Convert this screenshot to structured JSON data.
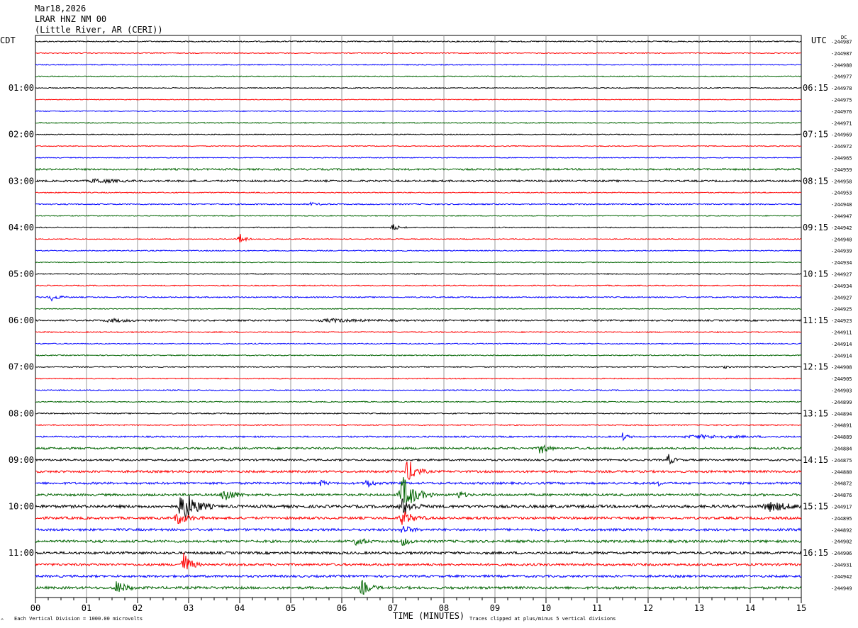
{
  "header": {
    "date": "Mar18,2026",
    "station": "LRAR HNZ NM 00",
    "location": "(Little River, AR (CERI))"
  },
  "labels": {
    "left_tz": "CDT",
    "right_tz": "UTC",
    "dc": "DC",
    "xlabel": "TIME (MINUTES)",
    "scale_note": "Each Vertical Division = 1000.00 microvolts",
    "clip_note": "Traces clipped at plus/minus 5 vertical divisions",
    "corner_mark": "^"
  },
  "chart_data": {
    "type": "line",
    "x_ticks": [
      "00",
      "01",
      "02",
      "03",
      "04",
      "05",
      "06",
      "07",
      "08",
      "09",
      "10",
      "11",
      "12",
      "13",
      "14",
      "15"
    ],
    "xlim": [
      0,
      15
    ],
    "minor_ticks_per_minute": 4,
    "left_hour_labels": [
      "01:00",
      "02:00",
      "03:00",
      "04:00",
      "05:00",
      "06:00",
      "07:00",
      "08:00",
      "09:00",
      "10:00",
      "11:00"
    ],
    "right_hour_labels": [
      "06:15",
      "07:15",
      "08:15",
      "09:15",
      "10:15",
      "11:15",
      "12:15",
      "13:15",
      "14:15",
      "15:15",
      "16:15"
    ],
    "labeled_every_n_traces": 4,
    "trace_colors": [
      "#000000",
      "#ff0000",
      "#0000ff",
      "#006400"
    ],
    "dc_offsets": [
      "-244987",
      "-244987",
      "-244980",
      "-244977",
      "-244978",
      "-244975",
      "-244976",
      "-244971",
      "-244969",
      "-244972",
      "-244965",
      "-244959",
      "-244958",
      "-244953",
      "-244948",
      "-244947",
      "-244942",
      "-244940",
      "-244939",
      "-244934",
      "-244927",
      "-244934",
      "-244927",
      "-244925",
      "-244923",
      "-244911",
      "-244914",
      "-244914",
      "-244908",
      "-244905",
      "-244903",
      "-244899",
      "-244894",
      "-244891",
      "-244889",
      "-244884",
      "-244875",
      "-244880",
      "-244872",
      "-244876",
      "-244917",
      "-244895",
      "-244892",
      "-244902",
      "-244906",
      "-244931",
      "-244942",
      "-244949"
    ],
    "trace_noise": [
      0.8,
      0.6,
      0.7,
      0.6,
      0.6,
      0.5,
      0.6,
      0.7,
      0.6,
      0.6,
      0.6,
      1.2,
      1.3,
      0.7,
      0.8,
      0.6,
      0.7,
      0.6,
      0.7,
      0.6,
      0.7,
      0.7,
      0.8,
      0.6,
      1.1,
      0.8,
      0.7,
      0.7,
      0.7,
      0.7,
      0.7,
      0.7,
      0.8,
      0.8,
      1.0,
      1.4,
      1.3,
      1.5,
      1.5,
      1.6,
      2.0,
      1.7,
      1.6,
      1.7,
      1.7,
      1.6,
      1.6,
      1.7
    ],
    "events": [
      {
        "trace": 12,
        "minute": 1.2,
        "amp": 3,
        "width": 0.8
      },
      {
        "trace": 14,
        "minute": 5.4,
        "amp": 2,
        "width": 0.4
      },
      {
        "trace": 16,
        "minute": 7.0,
        "amp": 5,
        "width": 0.3
      },
      {
        "trace": 17,
        "minute": 4.0,
        "amp": 8,
        "width": 0.25
      },
      {
        "trace": 22,
        "minute": 0.3,
        "amp": 5,
        "width": 0.4
      },
      {
        "trace": 24,
        "minute": 1.5,
        "amp": 2,
        "width": 1.0
      },
      {
        "trace": 24,
        "minute": 5.8,
        "amp": 2,
        "width": 1.5
      },
      {
        "trace": 28,
        "minute": 13.5,
        "amp": 2,
        "width": 0.2
      },
      {
        "trace": 34,
        "minute": 11.5,
        "amp": 5,
        "width": 0.25
      },
      {
        "trace": 34,
        "minute": 13.0,
        "amp": 2,
        "width": 2.0
      },
      {
        "trace": 35,
        "minute": 9.9,
        "amp": 10,
        "width": 0.3
      },
      {
        "trace": 36,
        "minute": 12.4,
        "amp": 8,
        "width": 0.25
      },
      {
        "trace": 37,
        "minute": 7.3,
        "amp": 18,
        "width": 0.4
      },
      {
        "trace": 38,
        "minute": 5.6,
        "amp": 5,
        "width": 0.2
      },
      {
        "trace": 38,
        "minute": 6.5,
        "amp": 6,
        "width": 0.3
      },
      {
        "trace": 38,
        "minute": 12.2,
        "amp": 4,
        "width": 0.1
      },
      {
        "trace": 39,
        "minute": 3.7,
        "amp": 12,
        "width": 0.4
      },
      {
        "trace": 39,
        "minute": 7.2,
        "amp": 25,
        "width": 0.6
      },
      {
        "trace": 39,
        "minute": 8.3,
        "amp": 5,
        "width": 0.3
      },
      {
        "trace": 40,
        "minute": 2.9,
        "amp": 25,
        "width": 0.6
      },
      {
        "trace": 40,
        "minute": 7.2,
        "amp": 12,
        "width": 0.5
      },
      {
        "trace": 40,
        "minute": 14.4,
        "amp": 6,
        "width": 1.0
      },
      {
        "trace": 41,
        "minute": 2.8,
        "amp": 8,
        "width": 0.5
      },
      {
        "trace": 41,
        "minute": 7.2,
        "amp": 10,
        "width": 0.5
      },
      {
        "trace": 42,
        "minute": 7.2,
        "amp": 6,
        "width": 0.4
      },
      {
        "trace": 43,
        "minute": 6.3,
        "amp": 8,
        "width": 0.3
      },
      {
        "trace": 43,
        "minute": 7.2,
        "amp": 6,
        "width": 0.3
      },
      {
        "trace": 45,
        "minute": 2.9,
        "amp": 18,
        "width": 0.35
      },
      {
        "trace": 47,
        "minute": 1.6,
        "amp": 10,
        "width": 0.4
      },
      {
        "trace": 47,
        "minute": 6.4,
        "amp": 10,
        "width": 0.4
      }
    ]
  }
}
